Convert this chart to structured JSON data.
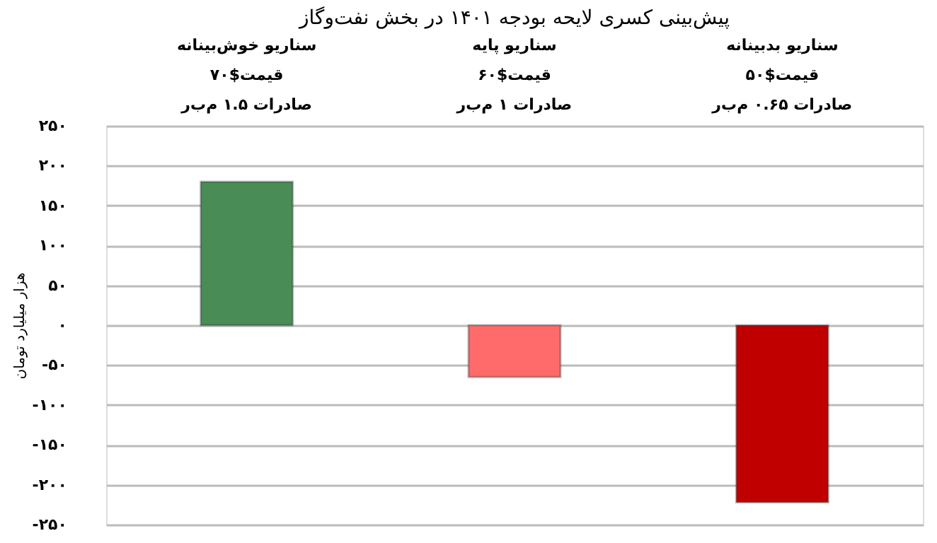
{
  "chart_data": {
    "type": "bar",
    "title": "پیش‌بینی کسری لایحه بودجه ۱۴۰۱ در بخش نفت‌وگاز",
    "ylabel": "هزار میلیارد تومان",
    "categories": [
      "سناریو خوش‌بینانه\nقیمت$۷۰\nصادرات ۱.۵ م‌ب‌ر",
      "سناریو پایه\nقیمت$۶۰\nصادرات ۱ م‌ب‌ر",
      "سناریو بدبینانه\nقیمت$۵۰\nصادرات ۰.۶۵ م‌ب‌ر"
    ],
    "values": [
      180,
      -65,
      -222
    ],
    "colors": [
      "#4a8c55",
      "#ff6b6b",
      "#c00000"
    ],
    "ylim": [
      -250,
      250
    ],
    "yticks": [
      {
        "value": 250,
        "label": "۲۵۰"
      },
      {
        "value": 200,
        "label": "۲۰۰"
      },
      {
        "value": 150,
        "label": "۱۵۰"
      },
      {
        "value": 100,
        "label": "۱۰۰"
      },
      {
        "value": 50,
        "label": "۵۰"
      },
      {
        "value": 0,
        "label": "۰"
      },
      {
        "value": -50,
        "label": "-۵۰"
      },
      {
        "value": -100,
        "label": "-۱۰۰"
      },
      {
        "value": -150,
        "label": "-۱۵۰"
      },
      {
        "value": -200,
        "label": "-۲۰۰"
      },
      {
        "value": -250,
        "label": "-۲۵۰"
      }
    ],
    "grid": "y"
  }
}
